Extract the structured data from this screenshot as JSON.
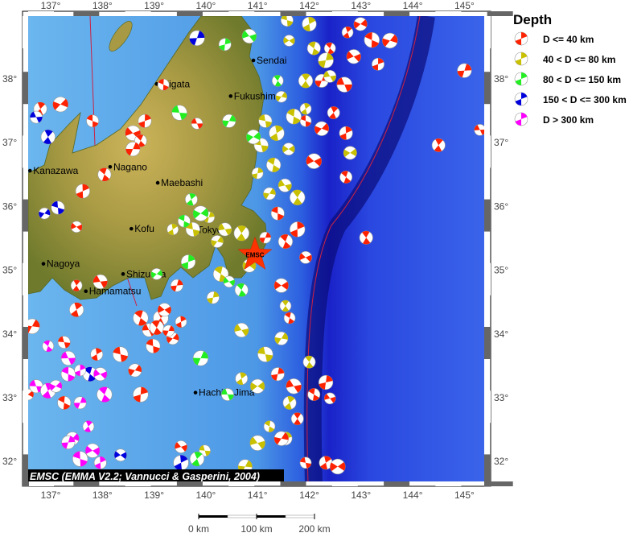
{
  "map": {
    "lon_range": [
      136.56,
      145.37
    ],
    "lat_range": [
      31.65,
      38.98
    ],
    "lon_ticks": [
      "137°",
      "138°",
      "139°",
      "140°",
      "141°",
      "142°",
      "143°",
      "144°",
      "145°"
    ],
    "lat_ticks": [
      "32°",
      "33°",
      "34°",
      "35°",
      "36°",
      "37°",
      "38°"
    ],
    "credit": "EMSC (EMMA V2.2; Vannucci & Gasperini, 2004)",
    "epicenter": {
      "label": "EMSC",
      "lon": 140.95,
      "lat": 35.24,
      "color": "#ff3300"
    },
    "scale_bar": {
      "labels": [
        "0 km",
        "100 km",
        "200 km"
      ]
    },
    "cities": [
      {
        "name": "Sendai",
        "lon": 140.92,
        "lat": 38.29
      },
      {
        "name": "Niigata",
        "lon": 139.05,
        "lat": 37.92
      },
      {
        "name": "Fukushima",
        "lon": 140.48,
        "lat": 37.73
      },
      {
        "name": "Kanazawa",
        "lon": 136.6,
        "lat": 36.56
      },
      {
        "name": "Nagano",
        "lon": 138.15,
        "lat": 36.62
      },
      {
        "name": "Maebashi",
        "lon": 139.07,
        "lat": 36.37
      },
      {
        "name": "Kofu",
        "lon": 138.56,
        "lat": 35.65
      },
      {
        "name": "Tokyo",
        "lon": 139.77,
        "lat": 35.63
      },
      {
        "name": "Nagoya",
        "lon": 136.86,
        "lat": 35.1
      },
      {
        "name": "Shizuoka",
        "lon": 138.4,
        "lat": 34.94
      },
      {
        "name": "Hamamatsu",
        "lon": 137.68,
        "lat": 34.67
      },
      {
        "name": "Hachijo-Jima",
        "lon": 139.8,
        "lat": 33.08
      }
    ]
  },
  "legend": {
    "title": "Depth",
    "classes": [
      {
        "label": "D <= 40 km",
        "color": "#ff2200"
      },
      {
        "label": "40 < D <= 80 km",
        "color": "#c8c000"
      },
      {
        "label": "80 < D <= 150 km",
        "color": "#22ee22"
      },
      {
        "label": "150 < D <= 300 km",
        "color": "#0000dd"
      },
      {
        "label": "D > 300 km",
        "color": "#ff00ff"
      }
    ]
  },
  "events_lon_lat_depthclass": [
    [
      142.74,
      38.73,
      0
    ],
    [
      142.99,
      38.86,
      0
    ],
    [
      143.21,
      38.61,
      0
    ],
    [
      143.33,
      38.23,
      0
    ],
    [
      142.86,
      38.35,
      0
    ],
    [
      142.4,
      38.48,
      0
    ],
    [
      142.24,
      37.97,
      0
    ],
    [
      142.68,
      37.91,
      0
    ],
    [
      142.47,
      37.47,
      0
    ],
    [
      142.24,
      37.22,
      0
    ],
    [
      141.93,
      37.34,
      0
    ],
    [
      142.71,
      37.15,
      0
    ],
    [
      142.09,
      36.71,
      0
    ],
    [
      142.71,
      36.46,
      0
    ],
    [
      145.0,
      38.13,
      0
    ],
    [
      145.3,
      37.2,
      0
    ],
    [
      144.5,
      36.96,
      0
    ],
    [
      143.56,
      38.6,
      0
    ],
    [
      141.57,
      38.92,
      1
    ],
    [
      142.0,
      38.86,
      1
    ],
    [
      141.61,
      38.6,
      1
    ],
    [
      142.09,
      38.48,
      1
    ],
    [
      142.32,
      38.29,
      1
    ],
    [
      142.4,
      38.04,
      1
    ],
    [
      141.93,
      37.97,
      1
    ],
    [
      141.46,
      37.72,
      1
    ],
    [
      141.15,
      37.34,
      1
    ],
    [
      141.37,
      37.15,
      1
    ],
    [
      141.6,
      36.9,
      1
    ],
    [
      141.31,
      36.65,
      1
    ],
    [
      141.0,
      36.52,
      1
    ],
    [
      141.53,
      36.33,
      1
    ],
    [
      141.77,
      36.14,
      1
    ],
    [
      141.23,
      36.2,
      1
    ],
    [
      141.07,
      36.96,
      1
    ],
    [
      141.93,
      37.53,
      1
    ],
    [
      142.79,
      36.84,
      1
    ],
    [
      141.7,
      37.41,
      1
    ],
    [
      140.37,
      38.54,
      2
    ],
    [
      140.84,
      38.67,
      2
    ],
    [
      141.39,
      37.97,
      2
    ],
    [
      140.45,
      37.34,
      2
    ],
    [
      139.49,
      37.47,
      2
    ],
    [
      139.72,
      36.11,
      2
    ],
    [
      140.92,
      37.09,
      2
    ],
    [
      139.18,
      37.91,
      0
    ],
    [
      138.82,
      37.34,
      0
    ],
    [
      138.59,
      37.15,
      0
    ],
    [
      138.74,
      37.03,
      0
    ],
    [
      138.59,
      36.9,
      0
    ],
    [
      139.83,
      37.3,
      0
    ],
    [
      136.8,
      37.53,
      0
    ],
    [
      137.19,
      37.6,
      0
    ],
    [
      137.81,
      37.34,
      0
    ],
    [
      137.62,
      36.24,
      0
    ],
    [
      137.5,
      35.68,
      0
    ],
    [
      138.04,
      36.5,
      0
    ],
    [
      139.83,
      38.64,
      3
    ],
    [
      136.72,
      37.4,
      3
    ],
    [
      136.95,
      37.09,
      3
    ],
    [
      136.88,
      35.89,
      3
    ],
    [
      137.14,
      35.98,
      3
    ],
    [
      139.52,
      31.98,
      3
    ],
    [
      138.35,
      32.1,
      3
    ],
    [
      137.76,
      33.37,
      3
    ],
    [
      140.06,
      35.83,
      1
    ],
    [
      140.37,
      35.64,
      1
    ],
    [
      140.69,
      35.58,
      1
    ],
    [
      140.22,
      35.45,
      1
    ],
    [
      139.75,
      35.64,
      1
    ],
    [
      139.36,
      35.64,
      1
    ],
    [
      140.84,
      35.07,
      1
    ],
    [
      140.29,
      34.94,
      1
    ],
    [
      140.14,
      34.57,
      1
    ],
    [
      140.69,
      34.06,
      1
    ],
    [
      141.54,
      34.44,
      1
    ],
    [
      141.46,
      33.93,
      1
    ],
    [
      141.15,
      33.68,
      1
    ],
    [
      140.69,
      33.3,
      1
    ],
    [
      141.0,
      33.18,
      1
    ],
    [
      141.23,
      32.55,
      1
    ],
    [
      141.54,
      32.36,
      1
    ],
    [
      141.0,
      32.29,
      1
    ],
    [
      142.0,
      33.56,
      1
    ],
    [
      140.76,
      31.92,
      1
    ],
    [
      139.98,
      32.17,
      1
    ],
    [
      141.62,
      32.92,
      1
    ],
    [
      139.9,
      35.89,
      2
    ],
    [
      139.58,
      35.77,
      2
    ],
    [
      139.66,
      35.13,
      2
    ],
    [
      140.45,
      34.82,
      2
    ],
    [
      140.69,
      34.69,
      2
    ],
    [
      139.9,
      33.62,
      2
    ],
    [
      140.42,
      33.05,
      2
    ],
    [
      139.83,
      32.04,
      2
    ],
    [
      139.05,
      34.94,
      2
    ],
    [
      141.39,
      35.89,
      0
    ],
    [
      141.77,
      35.64,
      0
    ],
    [
      141.93,
      35.2,
      0
    ],
    [
      141.54,
      35.45,
      0
    ],
    [
      141.15,
      35.51,
      0
    ],
    [
      138.9,
      34.06,
      0
    ],
    [
      139.13,
      34.25,
      0
    ],
    [
      139.36,
      33.93,
      0
    ],
    [
      138.98,
      33.81,
      0
    ],
    [
      139.52,
      34.19,
      0
    ],
    [
      139.2,
      34.38,
      0
    ],
    [
      138.74,
      34.25,
      0
    ],
    [
      139.44,
      34.76,
      0
    ],
    [
      137.96,
      34.82,
      0
    ],
    [
      137.5,
      34.76,
      0
    ],
    [
      138.63,
      33.43,
      0
    ],
    [
      138.35,
      33.68,
      0
    ],
    [
      137.89,
      33.68,
      0
    ],
    [
      141.46,
      34.76,
      0
    ],
    [
      141.62,
      34.25,
      0
    ],
    [
      141.39,
      33.37,
      0
    ],
    [
      141.7,
      33.18,
      0
    ],
    [
      141.77,
      32.67,
      0
    ],
    [
      141.46,
      32.36,
      0
    ],
    [
      141.93,
      31.98,
      0
    ],
    [
      142.32,
      31.98,
      0
    ],
    [
      142.55,
      31.92,
      0
    ],
    [
      142.09,
      33.05,
      0
    ],
    [
      142.32,
      33.24,
      0
    ],
    [
      142.4,
      32.99,
      0
    ],
    [
      143.1,
      35.51,
      0
    ],
    [
      136.64,
      34.12,
      0
    ],
    [
      137.26,
      33.87,
      0
    ],
    [
      137.5,
      34.38,
      0
    ],
    [
      136.56,
      33.05,
      0
    ],
    [
      137.26,
      32.92,
      0
    ],
    [
      138.74,
      33.05,
      0
    ],
    [
      139.52,
      32.23,
      0
    ],
    [
      139.05,
      34.1,
      0
    ],
    [
      139.28,
      34.05,
      0
    ],
    [
      136.72,
      33.18,
      4
    ],
    [
      136.95,
      33.11,
      4
    ],
    [
      137.1,
      33.18,
      4
    ],
    [
      137.34,
      33.37,
      4
    ],
    [
      137.57,
      33.43,
      4
    ],
    [
      137.96,
      33.37,
      4
    ],
    [
      138.04,
      33.05,
      4
    ],
    [
      137.57,
      32.92,
      4
    ],
    [
      137.34,
      33.62,
      4
    ],
    [
      137.73,
      32.55,
      4
    ],
    [
      137.42,
      32.36,
      4
    ],
    [
      137.57,
      32.04,
      4
    ],
    [
      137.96,
      31.98,
      4
    ],
    [
      137.81,
      32.17,
      4
    ],
    [
      136.95,
      33.81,
      4
    ],
    [
      137.34,
      32.3,
      4
    ]
  ]
}
